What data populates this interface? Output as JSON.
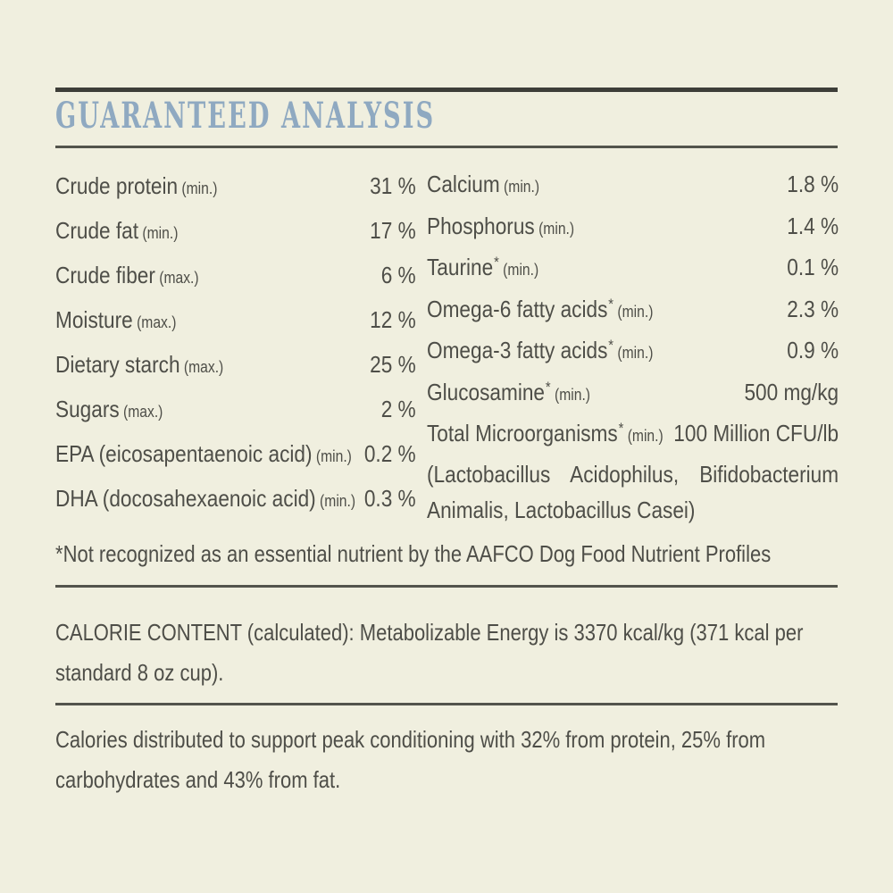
{
  "colors": {
    "background": "#f0efdf",
    "text": "#4e4e48",
    "title": "#8fa9c1",
    "rule": "#3d3e38"
  },
  "panel": {
    "title": "GUARANTEED ANALYSIS"
  },
  "analysis": {
    "left_rows": [
      {
        "label": "Crude protein",
        "qualifier": "(min.)",
        "value": "31 %"
      },
      {
        "label": "Crude fat",
        "qualifier": "(min.)",
        "value": "17 %"
      },
      {
        "label": "Crude fiber",
        "qualifier": "(max.)",
        "value": "6 %"
      },
      {
        "label": "Moisture",
        "qualifier": "(max.)",
        "value": "12 %"
      },
      {
        "label": "Dietary starch",
        "qualifier": "(max.)",
        "value": "25 %"
      },
      {
        "label": "Sugars",
        "qualifier": "(max.)",
        "value": "2 %"
      },
      {
        "label": "EPA (eicosapentaenoic acid)",
        "qualifier": "(min.)",
        "value": "0.2 %"
      },
      {
        "label": "DHA (docosahexaenoic acid)",
        "qualifier": "(min.)",
        "value": "0.3 %"
      }
    ],
    "right_rows": [
      {
        "label": "Calcium",
        "qualifier": "(min.)",
        "value": "1.8 %"
      },
      {
        "label": "Phosphorus",
        "qualifier": "(min.)",
        "value": "1.4 %"
      },
      {
        "label": "Taurine",
        "asterisk": "*",
        "qualifier": "(min.)",
        "value": "0.1 %"
      },
      {
        "label": "Omega-6 fatty acids",
        "asterisk": "*",
        "qualifier": "(min.)",
        "value": "2.3 %"
      },
      {
        "label": "Omega-3 fatty acids",
        "asterisk": "*",
        "qualifier": "(min.)",
        "value": "0.9 %"
      },
      {
        "label": "Glucosamine",
        "asterisk": "*",
        "qualifier": "(min.)",
        "value": "500 mg/kg"
      },
      {
        "label": "Total Microorganisms",
        "asterisk": "*",
        "qualifier": "(min.)",
        "value": "100 Million CFU/lb",
        "continuation": "(Lactobacillus Acidophilus, Bifidobacterium Animalis, Lactobacillus Casei)"
      }
    ]
  },
  "footnote": "*Not recognized as an essential nutrient by the AAFCO Dog Food Nutrient Profiles",
  "calorie_content": "CALORIE CONTENT (calculated): Metabolizable Energy is 3370 kcal/kg (371 kcal per standard 8 oz cup).",
  "calorie_distribution": "Calories distributed to support peak conditioning with 32% from protein, 25% from carbohydrates and 43% from fat."
}
